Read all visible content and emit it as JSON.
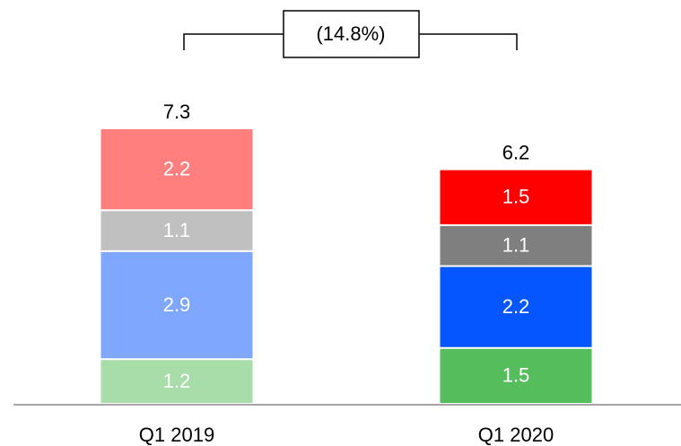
{
  "chart_data": {
    "type": "stacked_bar",
    "categories": [
      "Q1 2019",
      "Q1 2020"
    ],
    "series": [
      {
        "colors": [
          "#a8dca8",
          "#55bd5c"
        ],
        "values": [
          1.2,
          1.5
        ]
      },
      {
        "colors": [
          "#7fa7fd",
          "#0556fe"
        ],
        "values": [
          2.9,
          2.2
        ]
      },
      {
        "colors": [
          "#c0c0c0",
          "#7f7f7f"
        ],
        "values": [
          1.1,
          1.1
        ]
      },
      {
        "colors": [
          "#ff7f7f",
          "#fe0000"
        ],
        "values": [
          2.2,
          1.5
        ]
      }
    ],
    "totals": [
      7.3,
      6.2
    ],
    "annotation": "(14.8%)"
  }
}
